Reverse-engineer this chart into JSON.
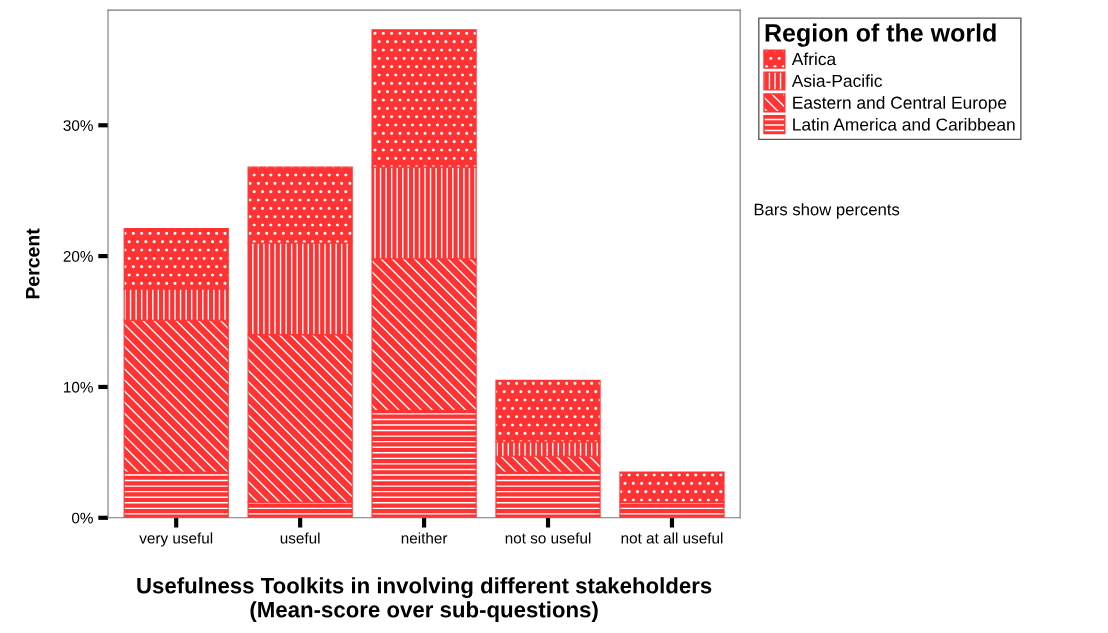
{
  "chart_data": {
    "type": "bar",
    "stacked": true,
    "xlabel": "Usefulness Toolkits in involving different stakeholders\n(Mean-score over sub-questions)",
    "ylabel": "Percent",
    "legend_title": "Region of the world",
    "legend": "right",
    "categories": [
      "very useful",
      "useful",
      "neither",
      "not so useful",
      "not at all useful"
    ],
    "series": [
      {
        "name": "Latin America and Caribbean",
        "color": "#ff3333",
        "values": [
          3.5,
          1.2,
          8.2,
          3.5,
          1.2
        ]
      },
      {
        "name": "Eastern and Central Europe",
        "color": "#ff3333",
        "values": [
          11.6,
          12.8,
          11.6,
          1.2,
          0
        ]
      },
      {
        "name": "Asia-Pacific",
        "color": "#ff3333",
        "values": [
          2.4,
          7.0,
          7.0,
          1.1,
          0
        ]
      },
      {
        "name": "Africa",
        "color": "#ff3333",
        "values": [
          4.6,
          5.8,
          10.5,
          4.7,
          2.3
        ]
      }
    ],
    "ylim": [
      0,
      38.8
    ],
    "yticks": [
      {
        "value": 0,
        "label": "0%"
      },
      {
        "value": 10,
        "label": "10%"
      },
      {
        "value": 20,
        "label": "20%"
      },
      {
        "value": 30,
        "label": "30%"
      }
    ],
    "annotations": [
      "Bars show percents"
    ]
  }
}
